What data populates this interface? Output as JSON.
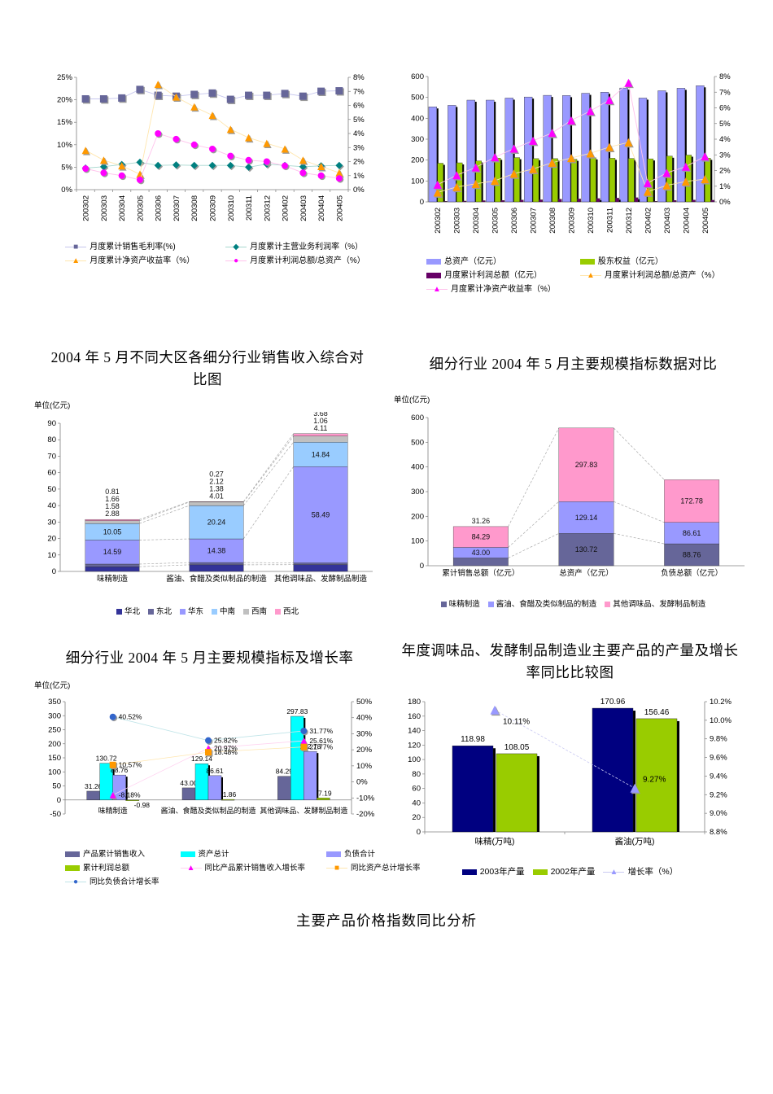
{
  "page": {
    "footer_title": "主要产品价格指数同比分析"
  },
  "chart_data": [
    {
      "type": "line",
      "x": [
        "200302",
        "200303",
        "200304",
        "200305",
        "200306",
        "200307",
        "200308",
        "200309",
        "200310",
        "200311",
        "200312",
        "200402",
        "200403",
        "200404",
        "200405"
      ],
      "left_axis": {
        "min": 0,
        "max": 25,
        "ticks": [
          "0%",
          "5%",
          "10%",
          "15%",
          "20%",
          "25%"
        ]
      },
      "right_axis": {
        "min": 0,
        "max": 8,
        "ticks": [
          "0%",
          "1%",
          "2%",
          "3%",
          "4%",
          "5%",
          "6%",
          "7%",
          "8%"
        ]
      },
      "series": [
        {
          "name": "月度累计销售毛利率(%)",
          "axis": "left",
          "marker": "square",
          "color": "#666699",
          "line_color": "#c6c6ee",
          "values": [
            20.2,
            20.2,
            20.4,
            22.3,
            21.0,
            20.8,
            21.2,
            21.5,
            20.1,
            21.0,
            21.0,
            21.4,
            20.8,
            21.9,
            22.0
          ]
        },
        {
          "name": "月度累计主营业务利润率（%）",
          "axis": "left",
          "marker": "diamond",
          "color": "#008080",
          "line_color": "#a8d8d0",
          "values": [
            4.8,
            5.1,
            5.6,
            6.1,
            5.4,
            5.5,
            5.4,
            5.4,
            5.4,
            5.0,
            5.7,
            5.4,
            5.1,
            5.3,
            5.4
          ]
        },
        {
          "name": "月度累计净资产收益率（%）",
          "axis": "right",
          "marker": "triangle",
          "color": "#FF9900",
          "line_color": "#ffe6ae",
          "values": [
            2.8,
            2.1,
            1.7,
            1.1,
            7.5,
            6.6,
            5.9,
            5.3,
            4.3,
            3.7,
            3.3,
            2.9,
            2.1,
            1.65,
            1.2
          ]
        },
        {
          "name": "月度累计利润总额/总资产（%）",
          "axis": "right",
          "marker": "circle",
          "color": "#FF00FF",
          "line_color": "#ffc2ec",
          "values": [
            1.5,
            1.2,
            1.0,
            0.7,
            4.0,
            3.6,
            3.2,
            2.9,
            2.4,
            2.1,
            2.0,
            1.7,
            1.2,
            1.0,
            0.8
          ]
        }
      ]
    },
    {
      "type": "bar-line",
      "x": [
        "200302",
        "200303",
        "200304",
        "200305",
        "200306",
        "200307",
        "200308",
        "200309",
        "200310",
        "200311",
        "200312",
        "200402",
        "200403",
        "200404",
        "200405"
      ],
      "left_axis": {
        "min": 0,
        "max": 600,
        "ticks": [
          "0",
          "100",
          "200",
          "300",
          "400",
          "500",
          "600"
        ]
      },
      "right_axis": {
        "min": 0,
        "max": 8,
        "ticks": [
          "0%",
          "1%",
          "2%",
          "3%",
          "4%",
          "5%",
          "6%",
          "7%",
          "8%"
        ]
      },
      "bar_series": [
        {
          "name": "总资产（亿元）",
          "color": "#9999FF",
          "values": [
            455,
            462,
            487,
            487,
            497,
            502,
            510,
            509,
            520,
            525,
            545,
            497,
            532,
            544,
            556
          ]
        },
        {
          "name": "股东权益（亿元）",
          "color": "#99CC00",
          "values": [
            185,
            187,
            196,
            209,
            212,
            207,
            207,
            204,
            211,
            209,
            208,
            206,
            219,
            224,
            209
          ]
        },
        {
          "name": "月度累计利润总额（亿元）",
          "color": "#660066",
          "values": [
            3,
            4,
            6,
            7,
            9,
            10,
            13,
            14,
            16,
            18,
            20,
            3,
            7,
            9,
            8
          ]
        }
      ],
      "line_series": [
        {
          "name": "月度累计利润总额/总资产（%）",
          "marker": "triangle",
          "color": "#FF9900",
          "line_color": "#ffe6ae",
          "values": [
            0.6,
            0.95,
            1.15,
            1.35,
            1.8,
            2.1,
            2.5,
            2.8,
            3.1,
            3.5,
            3.8,
            0.65,
            1.05,
            1.3,
            1.45
          ]
        },
        {
          "name": "月度累计净资产收益率（%）",
          "marker": "triangle",
          "color": "#FF00FF",
          "line_color": "#ffc2ec",
          "values": [
            1.1,
            1.7,
            2.2,
            2.85,
            3.4,
            3.9,
            4.4,
            5.2,
            5.8,
            6.5,
            7.6,
            1.2,
            1.85,
            2.25,
            2.9
          ]
        }
      ]
    },
    {
      "type": "stacked-bar",
      "title": "2004 年 5 月不同大区各细分行业销售收入综合对比图",
      "unit_label": "单位(亿元)",
      "y_axis": {
        "min": 0,
        "max": 90,
        "ticks": [
          "0",
          "10",
          "20",
          "30",
          "40",
          "50",
          "60",
          "70",
          "80",
          "90"
        ]
      },
      "categories": [
        "味精制造",
        "酱油、食醋及类似制品的制造",
        "其他调味品、发酵制品制造"
      ],
      "series": [
        {
          "name": "华北",
          "color": "#333399",
          "values": [
            2.88,
            4.01,
            4.11
          ]
        },
        {
          "name": "东北",
          "color": "#666699",
          "values": [
            1.58,
            1.38,
            1.06
          ]
        },
        {
          "name": "华东",
          "color": "#9999FF",
          "values": [
            14.59,
            14.38,
            58.49
          ]
        },
        {
          "name": "中南",
          "color": "#99CCFF",
          "values": [
            10.05,
            20.24,
            14.84
          ]
        },
        {
          "name": "西南",
          "color": "#C0C0C0",
          "values": [
            1.66,
            2.12,
            3.68
          ]
        },
        {
          "name": "西北",
          "color": "#FF99CC",
          "values": [
            0.81,
            0.27,
            1.51
          ]
        }
      ]
    },
    {
      "type": "stacked-bar",
      "title": "细分行业 2004 年 5 月主要规模指标数据对比",
      "unit_label": "单位(亿元)",
      "y_axis": {
        "min": 0,
        "max": 600,
        "ticks": [
          "0",
          "100",
          "200",
          "300",
          "400",
          "500",
          "600"
        ]
      },
      "categories": [
        "累计销售总额（亿元）",
        "总资产（亿元）",
        "负债总额（亿元）"
      ],
      "series": [
        {
          "name": "味精制造",
          "color": "#666699",
          "values": [
            31.26,
            130.72,
            88.76
          ]
        },
        {
          "name": "酱油、食醋及类似制品的制造",
          "color": "#9999FF",
          "values": [
            43.0,
            129.14,
            86.61
          ]
        },
        {
          "name": "其他调味品、发酵制品制造",
          "color": "#FF99CC",
          "values": [
            84.29,
            297.83,
            172.78
          ]
        }
      ]
    },
    {
      "type": "bar-marker",
      "title": "细分行业 2004 年 5 月主要规模指标及增长率",
      "unit_label": "单位(亿元)",
      "left_axis": {
        "min": -50,
        "max": 350,
        "ticks": [
          "-50",
          "0",
          "50",
          "100",
          "150",
          "200",
          "250",
          "300",
          "350"
        ]
      },
      "right_axis": {
        "min": -20,
        "max": 50,
        "ticks": [
          "-20%",
          "-10%",
          "0%",
          "10%",
          "20%",
          "30%",
          "40%",
          "50%"
        ]
      },
      "categories": [
        "味精制造",
        "酱油、食醋及类似制品的制造",
        "其他调味品、发酵制品制造"
      ],
      "bar_series": [
        {
          "name": "产品累计销售收入",
          "color": "#666699",
          "values": [
            31.26,
            43.0,
            84.29
          ]
        },
        {
          "name": "资产总计",
          "color": "#00FFFF",
          "values": [
            130.72,
            129.14,
            297.83
          ]
        },
        {
          "name": "负债合计",
          "color": "#9999FF",
          "values": [
            88.76,
            86.61,
            172.78
          ]
        },
        {
          "name": "累计利润总额",
          "color": "#99CC00",
          "values": [
            -0.98,
            1.86,
            7.19
          ]
        }
      ],
      "marker_series": [
        {
          "name": "同比产品累计销售收入增长率",
          "marker": "triangle",
          "color": "#FF00FF",
          "line_color": "#ffd2f0",
          "values": [
            -8.18,
            20.97,
            25.61
          ]
        },
        {
          "name": "同比资产总计增长率",
          "marker": "square",
          "color": "#FF9900",
          "line_color": "#ffe6b0",
          "values": [
            10.57,
            18.48,
            21.77
          ]
        },
        {
          "name": "同比负债合计增长率",
          "marker": "circle",
          "color": "#3366CC",
          "line_color": "#bfe4e8",
          "values": [
            40.52,
            25.82,
            31.77
          ]
        }
      ]
    },
    {
      "type": "grouped-bar-line",
      "title": "年度调味品、发酵制品制造业主要产品的产量及增长率同比比较图",
      "left_axis": {
        "min": 0,
        "max": 180,
        "ticks": [
          "0",
          "20",
          "40",
          "60",
          "80",
          "100",
          "120",
          "140",
          "160",
          "180"
        ]
      },
      "right_axis": {
        "min": 8.8,
        "max": 10.2,
        "ticks": [
          "8.8%",
          "9.0%",
          "9.2%",
          "9.4%",
          "9.6%",
          "9.8%",
          "10.0%",
          "10.2%"
        ]
      },
      "categories": [
        "味精(万吨)",
        "酱油(万吨)"
      ],
      "bar_series": [
        {
          "name": "2003年产量",
          "color": "#000080",
          "values": [
            118.98,
            170.96
          ]
        },
        {
          "name": "2002年产量",
          "color": "#99CC00",
          "values": [
            108.05,
            156.46
          ]
        }
      ],
      "line_series": [
        {
          "name": "增长率（%）",
          "marker": "triangle",
          "color": "#9999FF",
          "line_color": "#c9c9f2",
          "values": [
            10.11,
            9.27
          ]
        }
      ]
    }
  ]
}
